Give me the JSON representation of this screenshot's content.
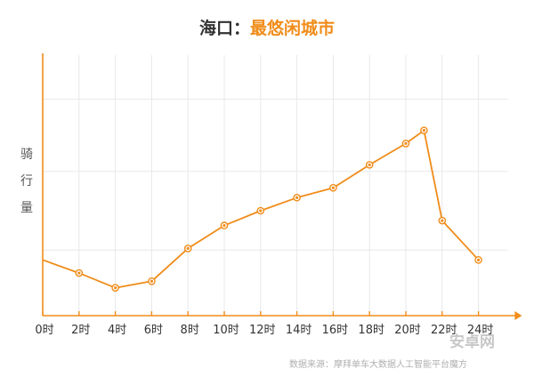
{
  "title": {
    "city": "海口：",
    "highlight": "最悠闲城市",
    "city_color": "#333333",
    "highlight_color": "#f08c19"
  },
  "source_note": "数据来源：摩拜单车大数据人工智能平台魔方",
  "watermark": "安卓网",
  "colors": {
    "line": "#f08c19",
    "axis": "#f08c19",
    "grid": "#e8e8e8"
  },
  "chart_data": {
    "type": "line",
    "title": "海口：最悠闲城市",
    "ylabel": "骑行量",
    "ylabel_chars": [
      "骑",
      "行",
      "量"
    ],
    "xlabel": "",
    "x_ticks": [
      "0时",
      "2时",
      "4时",
      "6时",
      "8时",
      "10时",
      "12时",
      "14时",
      "16时",
      "18时",
      "20时",
      "22时",
      "24时"
    ],
    "x": [
      0,
      2,
      4,
      6,
      8,
      10,
      12,
      14,
      16,
      18,
      20,
      21,
      22,
      24
    ],
    "y": [
      34,
      26,
      17,
      21,
      41,
      55,
      64,
      72,
      78,
      92,
      105,
      113,
      58,
      34
    ],
    "markers_from_index": 1,
    "xlim": [
      0,
      26
    ],
    "ylim": [
      0,
      160
    ],
    "y_grid_values": [
      40,
      88,
      132
    ],
    "grid": true,
    "legend": "none"
  }
}
